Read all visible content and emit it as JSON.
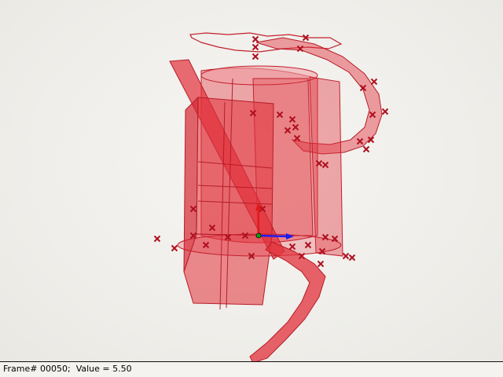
{
  "viewport": {
    "background": "#efeeea",
    "mesh_color": "#e2313b",
    "marker_color": "#b01020",
    "gizmo": {
      "x_axis_color": "#1e1ef0",
      "y_axis_color": "#e01818",
      "z_axis_color": "#10a010"
    }
  },
  "status_bar": {
    "frame_label": "Frame# 00050;",
    "value_label": "Value = 5.50"
  }
}
